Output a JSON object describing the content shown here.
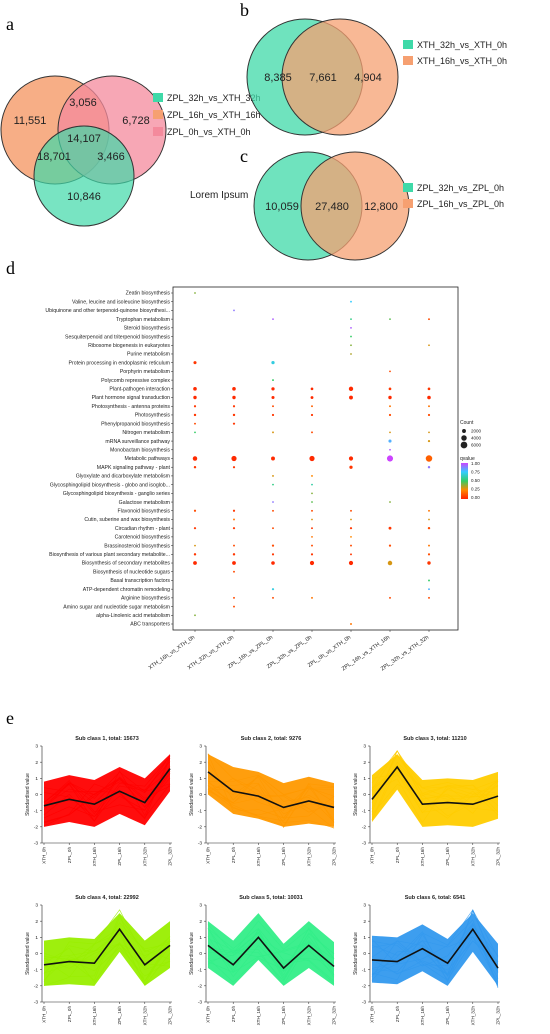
{
  "panels": {
    "a": "a",
    "b": "b",
    "c": "c",
    "d": "d",
    "e": "e"
  },
  "chart_data": [
    {
      "type": "venn",
      "id": "a",
      "sets": [
        {
          "name": "ZPL_32h_vs_XTH_32h",
          "color": "#3fd9a8"
        },
        {
          "name": "ZPL_16h_vs_XTH_16h",
          "color": "#f6a071"
        },
        {
          "name": "ZPL_0h_vs_XTH_0h",
          "color": "#f48a9c"
        }
      ],
      "regions": {
        "only_16h": "11,551",
        "16h_0h": "3,056",
        "only_0h": "6,728",
        "all": "14,107",
        "32h_16h": "18,701",
        "32h_0h": "3,466",
        "only_32h": "10,846"
      }
    },
    {
      "type": "venn",
      "id": "b",
      "sets": [
        {
          "name": "XTH_32h_vs_XTH_0h",
          "color": "#3fd9a8"
        },
        {
          "name": "XTH_16h_vs_XTH_0h",
          "color": "#f6a071"
        }
      ],
      "regions": {
        "left": "8,385",
        "overlap": "7,661",
        "right": "4,904"
      }
    },
    {
      "type": "venn",
      "id": "c",
      "annotation": "Lorem Ipsum",
      "sets": [
        {
          "name": "ZPL_32h_vs_ZPL_0h",
          "color": "#3fd9a8"
        },
        {
          "name": "ZPL_16h_vs_ZPL_0h",
          "color": "#f6a071"
        }
      ],
      "regions": {
        "left": "10,059",
        "overlap": "27,480",
        "right": "12,800"
      }
    },
    {
      "type": "scatter",
      "id": "d",
      "comparisons": [
        "XTH_16h_vs_XTH_0h",
        "XTH_32h_vs_XTH_0h",
        "ZPL_16h_vs_ZPL_0h",
        "ZPL_32h_vs_ZPL_0h",
        "ZPL_0h_vs_XTH_0h",
        "ZPL_16h_vs_XTH_16h",
        "ZPL_32h_vs_XTH_32h"
      ],
      "pathways": [
        "Zeatin biosynthesis",
        "Valine, leucine and isoleucine biosynthesis",
        "Ubiquinone and other terpenoid-quinone biosynthesi...",
        "Tryptophan metabolism",
        "Steroid biosynthesis",
        "Sesquiterpenoid and triterpenoid biosynthesis",
        "Ribosome biogenesis in eukaryotes",
        "Purine metabolism",
        "Protein processing in endoplasmic reticulum",
        "Porphyrin metabolism",
        "Polycomb repressive complex",
        "Plant-pathogen interaction",
        "Plant hormone signal transduction",
        "Photosynthesis - antenna proteins",
        "Photosynthesis",
        "Phenylpropanoid biosynthesis",
        "Nitrogen metabolism",
        "mRNA surveillance pathway",
        "Monobactam biosynthesis",
        "Metabolic pathways",
        "MAPK signaling pathway - plant",
        "Glyoxylate and dicarboxylate metabolism",
        "Glycosphingolipid biosynthesis - globo and isoglob...",
        "Glycosphingolipid biosynthesis - ganglio series",
        "Galactose metabolism",
        "Flavonoid biosynthesis",
        "Cutin, suberine and wax biosynthesis",
        "Circadian rhythm - plant",
        "Carotenoid biosynthesis",
        "Brassinosteroid biosynthesis",
        "Biosynthesis of various plant secondary metabolite...",
        "Biosynthesis of secondary metabolites",
        "Biosynthesis of nucleotide sugars",
        "Basal transcription factors",
        "ATP-dependent chromatin remodeling",
        "Arginine biosynthesis",
        "Amino sugar and nucleotide sugar metabolism",
        "alpha-Linolenic acid metabolism",
        "ABC transporters"
      ],
      "points": [
        [
          0,
          0,
          0.4,
          200
        ],
        [
          1,
          4,
          0.75,
          200
        ],
        [
          2,
          1,
          0.9,
          200
        ],
        [
          3,
          2,
          0.95,
          200
        ],
        [
          3,
          4,
          0.55,
          200
        ],
        [
          3,
          5,
          0.45,
          200
        ],
        [
          3,
          6,
          0.1,
          300
        ],
        [
          4,
          4,
          0.95,
          200
        ],
        [
          5,
          4,
          0.5,
          200
        ],
        [
          6,
          4,
          0.4,
          200
        ],
        [
          6,
          6,
          0.3,
          200
        ],
        [
          7,
          4,
          0.35,
          200
        ],
        [
          8,
          0,
          0.05,
          800
        ],
        [
          8,
          2,
          0.7,
          900
        ],
        [
          9,
          5,
          0.1,
          200
        ],
        [
          10,
          2,
          0.5,
          300
        ],
        [
          11,
          0,
          0.02,
          1100
        ],
        [
          11,
          1,
          0.02,
          1100
        ],
        [
          11,
          2,
          0.02,
          900
        ],
        [
          11,
          3,
          0.02,
          600
        ],
        [
          11,
          4,
          0.02,
          1600
        ],
        [
          11,
          5,
          0.05,
          600
        ],
        [
          11,
          6,
          0.05,
          600
        ],
        [
          12,
          0,
          0.02,
          1000
        ],
        [
          12,
          1,
          0.02,
          1000
        ],
        [
          12,
          2,
          0.02,
          800
        ],
        [
          12,
          3,
          0.02,
          700
        ],
        [
          12,
          4,
          0.02,
          1300
        ],
        [
          12,
          5,
          0.02,
          1000
        ],
        [
          12,
          6,
          0.02,
          1100
        ],
        [
          13,
          0,
          0.05,
          400
        ],
        [
          13,
          1,
          0.05,
          400
        ],
        [
          13,
          2,
          0.1,
          300
        ],
        [
          13,
          3,
          0.15,
          300
        ],
        [
          13,
          5,
          0.2,
          300
        ],
        [
          13,
          6,
          0.2,
          300
        ],
        [
          14,
          0,
          0.05,
          500
        ],
        [
          14,
          1,
          0.05,
          500
        ],
        [
          14,
          2,
          0.05,
          400
        ],
        [
          14,
          3,
          0.05,
          400
        ],
        [
          14,
          5,
          0.1,
          400
        ],
        [
          14,
          6,
          0.1,
          400
        ],
        [
          15,
          0,
          0.1,
          300
        ],
        [
          15,
          1,
          0.05,
          400
        ],
        [
          16,
          0,
          0.5,
          200
        ],
        [
          16,
          2,
          0.3,
          300
        ],
        [
          16,
          3,
          0.1,
          300
        ],
        [
          16,
          5,
          0.3,
          200
        ],
        [
          16,
          6,
          0.3,
          200
        ],
        [
          17,
          5,
          0.8,
          800
        ],
        [
          17,
          6,
          0.3,
          400
        ],
        [
          18,
          5,
          0.95,
          200
        ],
        [
          19,
          0,
          0.02,
          1700
        ],
        [
          19,
          1,
          0.02,
          2300
        ],
        [
          19,
          2,
          0.02,
          1300
        ],
        [
          19,
          3,
          0.02,
          2300
        ],
        [
          19,
          4,
          0.02,
          1500
        ],
        [
          19,
          5,
          1.0,
          3200
        ],
        [
          19,
          6,
          0.15,
          3600
        ],
        [
          20,
          0,
          0.05,
          500
        ],
        [
          20,
          1,
          0.05,
          400
        ],
        [
          20,
          4,
          0.05,
          900
        ],
        [
          20,
          6,
          0.9,
          500
        ],
        [
          21,
          2,
          0.3,
          300
        ],
        [
          21,
          3,
          0.25,
          300
        ],
        [
          22,
          2,
          0.55,
          200
        ],
        [
          22,
          3,
          0.6,
          200
        ],
        [
          23,
          3,
          0.4,
          200
        ],
        [
          24,
          2,
          0.9,
          200
        ],
        [
          24,
          3,
          0.45,
          200
        ],
        [
          24,
          5,
          0.4,
          200
        ],
        [
          25,
          0,
          0.1,
          400
        ],
        [
          25,
          1,
          0.05,
          400
        ],
        [
          25,
          2,
          0.1,
          300
        ],
        [
          25,
          3,
          0.1,
          300
        ],
        [
          25,
          4,
          0.1,
          300
        ],
        [
          25,
          6,
          0.2,
          300
        ],
        [
          26,
          1,
          0.2,
          300
        ],
        [
          26,
          3,
          0.3,
          200
        ],
        [
          26,
          4,
          0.3,
          200
        ],
        [
          26,
          6,
          0.3,
          200
        ],
        [
          27,
          0,
          0.05,
          400
        ],
        [
          27,
          1,
          0.05,
          400
        ],
        [
          27,
          2,
          0.1,
          300
        ],
        [
          27,
          3,
          0.05,
          300
        ],
        [
          27,
          4,
          0.05,
          400
        ],
        [
          27,
          5,
          0.05,
          700
        ],
        [
          27,
          6,
          0.1,
          500
        ],
        [
          28,
          3,
          0.2,
          200
        ],
        [
          28,
          4,
          0.25,
          200
        ],
        [
          29,
          0,
          0.3,
          200
        ],
        [
          29,
          1,
          0.1,
          300
        ],
        [
          29,
          2,
          0.1,
          400
        ],
        [
          29,
          3,
          0.1,
          300
        ],
        [
          29,
          4,
          0.1,
          300
        ],
        [
          29,
          5,
          0.1,
          400
        ],
        [
          29,
          6,
          0.2,
          300
        ],
        [
          30,
          0,
          0.05,
          500
        ],
        [
          30,
          1,
          0.05,
          500
        ],
        [
          30,
          2,
          0.05,
          400
        ],
        [
          30,
          3,
          0.05,
          400
        ],
        [
          30,
          4,
          0.05,
          300
        ],
        [
          30,
          6,
          0.1,
          400
        ],
        [
          31,
          0,
          0.02,
          1200
        ],
        [
          31,
          1,
          0.02,
          1200
        ],
        [
          31,
          2,
          0.02,
          1100
        ],
        [
          31,
          3,
          0.02,
          1500
        ],
        [
          31,
          4,
          0.02,
          1500
        ],
        [
          31,
          5,
          0.3,
          1700
        ],
        [
          31,
          6,
          0.05,
          1000
        ],
        [
          32,
          1,
          0.1,
          300
        ],
        [
          33,
          6,
          0.5,
          300
        ],
        [
          34,
          2,
          0.7,
          400
        ],
        [
          34,
          6,
          0.8,
          300
        ],
        [
          35,
          1,
          0.1,
          300
        ],
        [
          35,
          2,
          0.1,
          300
        ],
        [
          35,
          3,
          0.2,
          300
        ],
        [
          35,
          5,
          0.1,
          300
        ],
        [
          35,
          6,
          0.1,
          300
        ],
        [
          36,
          1,
          0.1,
          300
        ],
        [
          37,
          0,
          0.4,
          200
        ],
        [
          38,
          4,
          0.2,
          300
        ]
      ],
      "legend": {
        "size_title": "Count",
        "size_values": [
          2000,
          4000,
          6000
        ],
        "color_title": "qvalue",
        "color_ticks": [
          "1.00",
          "0.75",
          "0.50",
          "0.25",
          "0.00"
        ]
      }
    },
    {
      "type": "line",
      "id": "e",
      "x": [
        "XTH_0h",
        "ZPL_0h",
        "XTH_16h",
        "ZPL_16h",
        "XTH_32h",
        "ZPL_32h"
      ],
      "ylabel": "Standardised value",
      "ylim": [
        -3,
        3
      ],
      "yticks": [
        "-3",
        "-2",
        "-1",
        "0",
        "1",
        "2",
        "3"
      ],
      "subclasses": [
        {
          "title": "Sub class 1, total: 15673",
          "color": "#ff0000",
          "mean": [
            -0.7,
            -0.3,
            -0.6,
            0.2,
            -0.5,
            1.6
          ]
        },
        {
          "title": "Sub class 2, total: 9276",
          "color": "#ff9900",
          "mean": [
            1.4,
            0.2,
            -0.1,
            -0.8,
            -0.4,
            -0.8
          ]
        },
        {
          "title": "Sub class 3, total: 11210",
          "color": "#ffcc00",
          "mean": [
            -0.3,
            1.7,
            -0.6,
            -0.5,
            -0.6,
            -0.1
          ]
        },
        {
          "title": "Sub class 4, total: 22992",
          "color": "#99ee00",
          "mean": [
            -0.7,
            -0.5,
            -0.6,
            1.5,
            -0.7,
            0.5
          ]
        },
        {
          "title": "Sub class 5, total: 10031",
          "color": "#33ee88",
          "mean": [
            0.5,
            -0.7,
            1.0,
            -0.9,
            0.5,
            -0.8
          ]
        },
        {
          "title": "Sub class 6, total: 6541",
          "color": "#3399ee",
          "mean": [
            -0.4,
            -0.5,
            0.3,
            -0.6,
            1.5,
            -0.9
          ]
        }
      ]
    }
  ]
}
